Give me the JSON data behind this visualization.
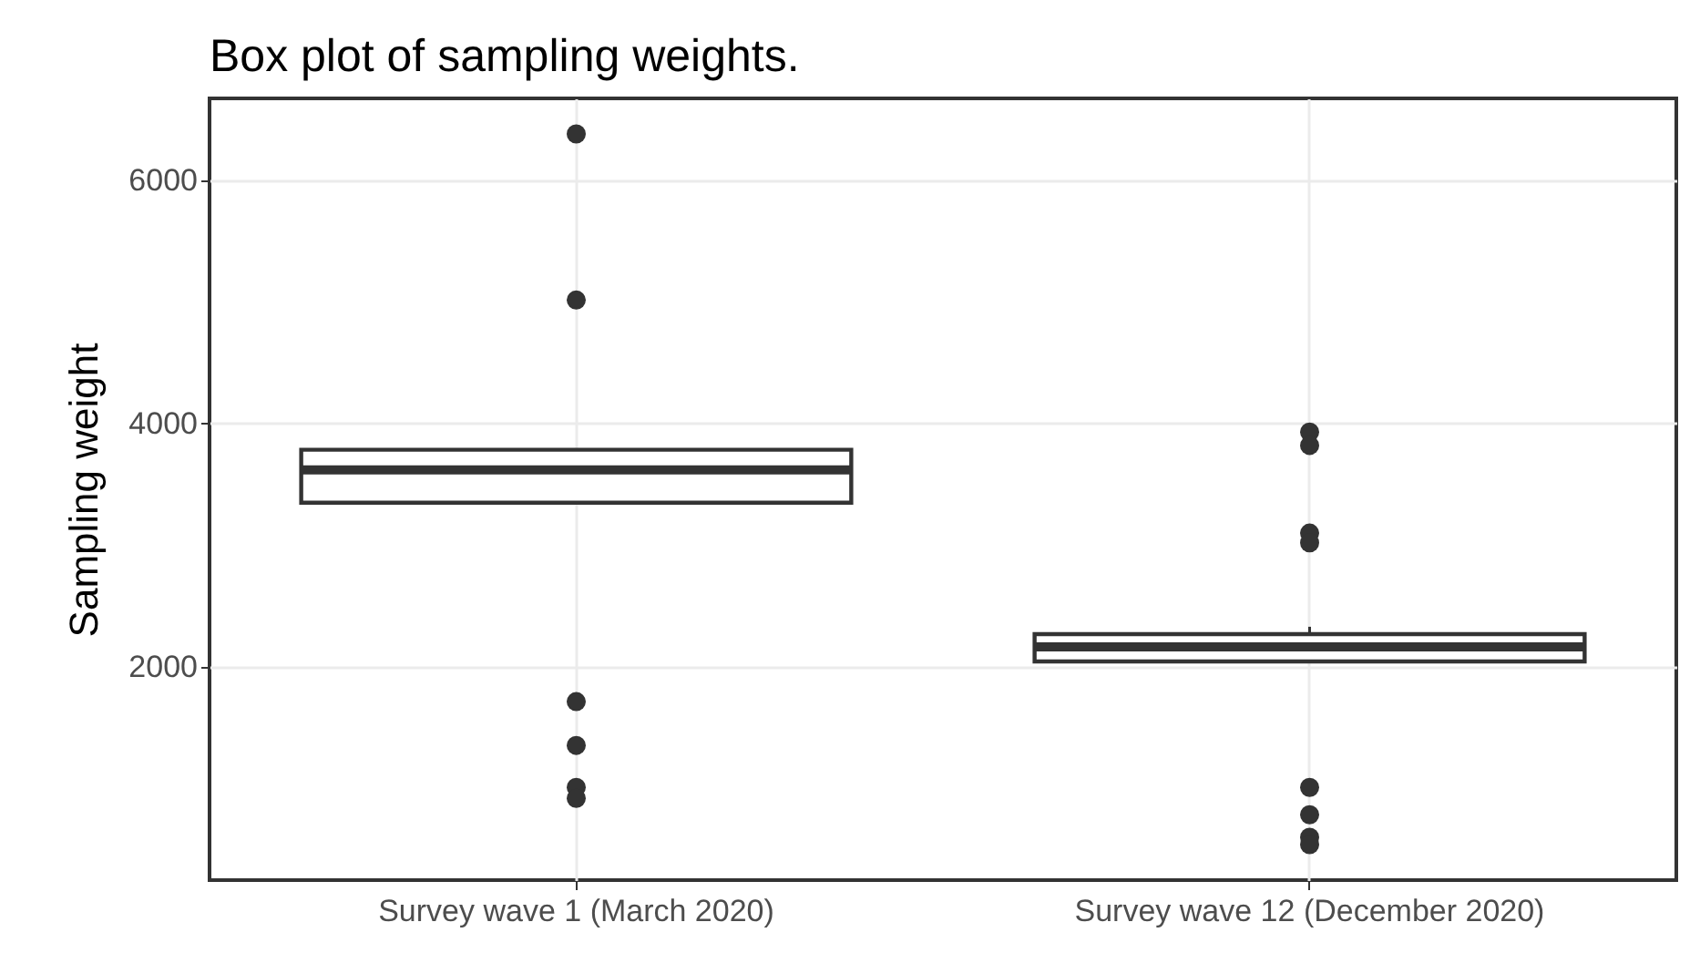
{
  "chart_data": {
    "type": "box",
    "title": "Box plot of sampling weights.",
    "ylabel": "Sampling weight",
    "categories": [
      "Survey wave 1 (March 2020)",
      "Survey wave 12 (December 2020)"
    ],
    "boxes": [
      {
        "low": 3350,
        "q1": 3350,
        "median": 3620,
        "q3": 3785,
        "high": 3785,
        "outliers": [
          6380,
          5015,
          1715,
          1355,
          1010,
          920
        ]
      },
      {
        "low": 2045,
        "q1": 2045,
        "median": 2165,
        "q3": 2270,
        "high": 2330,
        "outliers": [
          3930,
          3820,
          3100,
          3020,
          1010,
          785,
          600,
          540
        ]
      }
    ],
    "ylim": [
      248,
      6672
    ],
    "yticks": [
      2000,
      4000,
      6000
    ],
    "grid": true
  }
}
